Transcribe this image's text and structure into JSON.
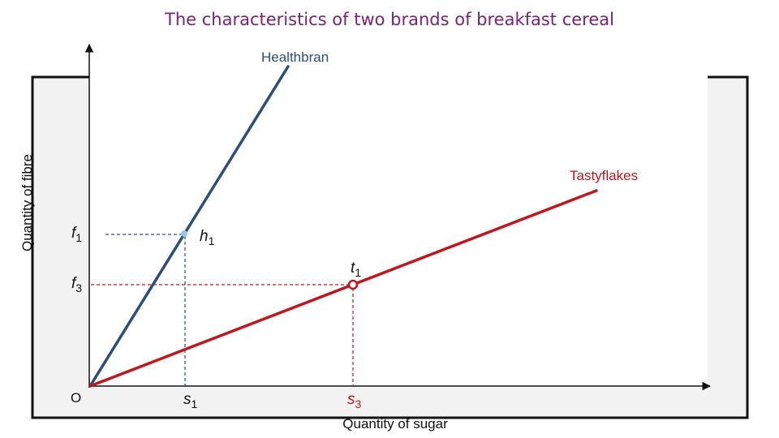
{
  "title": "The characteristics of two brands of breakfast cereal",
  "axes": {
    "y_label": "Quantity of fibre",
    "x_label": "Quantity of sugar",
    "origin_label": "O"
  },
  "lines": {
    "healthbran": {
      "label": "Healthbran",
      "color": "#2e4d7a"
    },
    "tastyflakes": {
      "label": "Tastyflakes",
      "color": "#c0171c"
    }
  },
  "points": {
    "h": {
      "letter": "h",
      "sub": "1"
    },
    "t": {
      "letter": "t",
      "sub": "1"
    }
  },
  "markers": {
    "f1": {
      "letter": "f",
      "sub": "1"
    },
    "f3": {
      "letter": "f",
      "sub": "3"
    },
    "s1": {
      "letter": "s",
      "sub": "1"
    },
    "s3": {
      "letter": "s",
      "sub": "3"
    }
  },
  "colors": {
    "title": "#7a1f7a",
    "panel": "#f2f2f2",
    "healthbran_guide": "#2e4d7a",
    "tastyflakes_guide": "#c0171c",
    "point_h": "#8fc8e8"
  }
}
